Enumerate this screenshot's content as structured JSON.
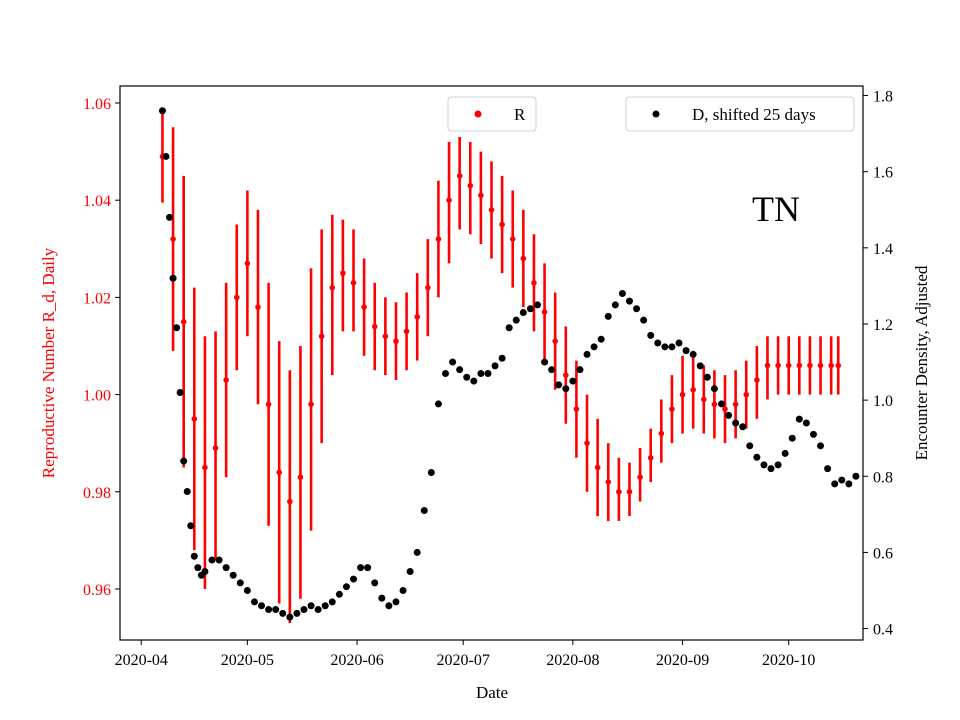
{
  "chart_data": {
    "type": "scatter",
    "annotation": "TN",
    "xlabel": "Date",
    "ylabel_left": "Reproductive Number R_d, Daily",
    "ylabel_right": "Encounter Density, Adjusted",
    "x_ticks": [
      "2020-04",
      "2020-05",
      "2020-06",
      "2020-07",
      "2020-08",
      "2020-09",
      "2020-10"
    ],
    "y_left_ticks": [
      "0.96",
      "0.98",
      "1.00",
      "1.02",
      "1.04",
      "1.06"
    ],
    "y_right_ticks": [
      "0.4",
      "0.6",
      "0.8",
      "1.0",
      "1.2",
      "1.4",
      "1.6",
      "1.8"
    ],
    "ylim_left": [
      0.9495,
      1.0635
    ],
    "ylim_right": [
      0.37,
      1.825
    ],
    "xlim": [
      "2020-03-26",
      "2020-10-22"
    ],
    "legend_left": "top-center",
    "legend_right": "top-right",
    "colors": {
      "R": "#ff0000",
      "D": "#000000"
    },
    "series": [
      {
        "name": "R",
        "marker": "dot",
        "errorbars": true,
        "points": [
          [
            "2020-04-07",
            1.049,
            1.0395,
            1.0585
          ],
          [
            "2020-04-10",
            1.032,
            1.009,
            1.055
          ],
          [
            "2020-04-13",
            1.015,
            0.985,
            1.045
          ],
          [
            "2020-04-16",
            0.995,
            0.968,
            1.022
          ],
          [
            "2020-04-19",
            0.985,
            0.96,
            1.012
          ],
          [
            "2020-04-22",
            0.989,
            0.966,
            1.013
          ],
          [
            "2020-04-25",
            1.003,
            0.983,
            1.023
          ],
          [
            "2020-04-28",
            1.02,
            1.005,
            1.035
          ],
          [
            "2020-05-01",
            1.027,
            1.012,
            1.042
          ],
          [
            "2020-05-04",
            1.018,
            0.998,
            1.038
          ],
          [
            "2020-05-07",
            0.998,
            0.973,
            1.023
          ],
          [
            "2020-05-10",
            0.984,
            0.957,
            1.011
          ],
          [
            "2020-05-13",
            0.978,
            0.953,
            1.005
          ],
          [
            "2020-05-16",
            0.983,
            0.958,
            1.01
          ],
          [
            "2020-05-19",
            0.998,
            0.972,
            1.026
          ],
          [
            "2020-05-22",
            1.012,
            0.99,
            1.034
          ],
          [
            "2020-05-25",
            1.022,
            1.004,
            1.037
          ],
          [
            "2020-05-28",
            1.025,
            1.013,
            1.036
          ],
          [
            "2020-05-31",
            1.023,
            1.013,
            1.034
          ],
          [
            "2020-06-03",
            1.018,
            1.008,
            1.028
          ],
          [
            "2020-06-06",
            1.014,
            1.005,
            1.023
          ],
          [
            "2020-06-09",
            1.012,
            1.004,
            1.02
          ],
          [
            "2020-06-12",
            1.011,
            1.003,
            1.019
          ],
          [
            "2020-06-15",
            1.013,
            1.005,
            1.021
          ],
          [
            "2020-06-18",
            1.016,
            1.007,
            1.025
          ],
          [
            "2020-06-21",
            1.022,
            1.012,
            1.032
          ],
          [
            "2020-06-24",
            1.032,
            1.02,
            1.044
          ],
          [
            "2020-06-27",
            1.04,
            1.027,
            1.052
          ],
          [
            "2020-06-30",
            1.045,
            1.034,
            1.053
          ],
          [
            "2020-07-03",
            1.043,
            1.033,
            1.052
          ],
          [
            "2020-07-06",
            1.041,
            1.031,
            1.05
          ],
          [
            "2020-07-09",
            1.038,
            1.028,
            1.048
          ],
          [
            "2020-07-12",
            1.035,
            1.025,
            1.045
          ],
          [
            "2020-07-15",
            1.032,
            1.022,
            1.042
          ],
          [
            "2020-07-18",
            1.028,
            1.018,
            1.038
          ],
          [
            "2020-07-21",
            1.023,
            1.013,
            1.033
          ],
          [
            "2020-07-24",
            1.017,
            1.007,
            1.027
          ],
          [
            "2020-07-27",
            1.011,
            1.001,
            1.021
          ],
          [
            "2020-07-30",
            1.004,
            0.994,
            1.014
          ],
          [
            "2020-08-02",
            0.997,
            0.987,
            1.007
          ],
          [
            "2020-08-05",
            0.99,
            0.98,
            1.0
          ],
          [
            "2020-08-08",
            0.985,
            0.975,
            0.995
          ],
          [
            "2020-08-11",
            0.982,
            0.974,
            0.99
          ],
          [
            "2020-08-14",
            0.98,
            0.974,
            0.987
          ],
          [
            "2020-08-17",
            0.98,
            0.975,
            0.986
          ],
          [
            "2020-08-20",
            0.983,
            0.978,
            0.989
          ],
          [
            "2020-08-23",
            0.987,
            0.982,
            0.993
          ],
          [
            "2020-08-26",
            0.992,
            0.986,
            0.999
          ],
          [
            "2020-08-29",
            0.997,
            0.99,
            1.004
          ],
          [
            "2020-09-01",
            1.0,
            0.992,
            1.008
          ],
          [
            "2020-09-04",
            1.001,
            0.993,
            1.009
          ],
          [
            "2020-09-07",
            0.999,
            0.992,
            1.006
          ],
          [
            "2020-09-10",
            0.998,
            0.991,
            1.005
          ],
          [
            "2020-09-13",
            0.997,
            0.99,
            1.004
          ],
          [
            "2020-09-16",
            0.998,
            0.991,
            1.005
          ],
          [
            "2020-09-19",
            1.0,
            0.993,
            1.007
          ],
          [
            "2020-09-22",
            1.003,
            0.995,
            1.01
          ],
          [
            "2020-09-25",
            1.006,
            0.999,
            1.012
          ],
          [
            "2020-09-28",
            1.006,
            1.0,
            1.012
          ],
          [
            "2020-10-01",
            1.006,
            1.0,
            1.012
          ],
          [
            "2020-10-04",
            1.006,
            1.0,
            1.012
          ],
          [
            "2020-10-07",
            1.006,
            1.0,
            1.012
          ],
          [
            "2020-10-10",
            1.006,
            1.0,
            1.012
          ],
          [
            "2020-10-13",
            1.006,
            1.0,
            1.012
          ],
          [
            "2020-10-15",
            1.006,
            1.0,
            1.012
          ]
        ]
      },
      {
        "name": "D, shifted 25 days",
        "marker": "dot",
        "points": [
          [
            "2020-04-07",
            1.76
          ],
          [
            "2020-04-08",
            1.64
          ],
          [
            "2020-04-09",
            1.48
          ],
          [
            "2020-04-10",
            1.32
          ],
          [
            "2020-04-11",
            1.19
          ],
          [
            "2020-04-12",
            1.02
          ],
          [
            "2020-04-13",
            0.84
          ],
          [
            "2020-04-14",
            0.76
          ],
          [
            "2020-04-15",
            0.67
          ],
          [
            "2020-04-16",
            0.59
          ],
          [
            "2020-04-17",
            0.56
          ],
          [
            "2020-04-18",
            0.54
          ],
          [
            "2020-04-19",
            0.55
          ],
          [
            "2020-04-21",
            0.58
          ],
          [
            "2020-04-23",
            0.58
          ],
          [
            "2020-04-25",
            0.56
          ],
          [
            "2020-04-27",
            0.54
          ],
          [
            "2020-04-29",
            0.52
          ],
          [
            "2020-05-01",
            0.5
          ],
          [
            "2020-05-03",
            0.47
          ],
          [
            "2020-05-05",
            0.46
          ],
          [
            "2020-05-07",
            0.45
          ],
          [
            "2020-05-09",
            0.45
          ],
          [
            "2020-05-11",
            0.44
          ],
          [
            "2020-05-13",
            0.43
          ],
          [
            "2020-05-15",
            0.44
          ],
          [
            "2020-05-17",
            0.45
          ],
          [
            "2020-05-19",
            0.46
          ],
          [
            "2020-05-21",
            0.45
          ],
          [
            "2020-05-23",
            0.46
          ],
          [
            "2020-05-25",
            0.47
          ],
          [
            "2020-05-27",
            0.49
          ],
          [
            "2020-05-29",
            0.51
          ],
          [
            "2020-05-31",
            0.53
          ],
          [
            "2020-06-02",
            0.56
          ],
          [
            "2020-06-04",
            0.56
          ],
          [
            "2020-06-06",
            0.52
          ],
          [
            "2020-06-08",
            0.48
          ],
          [
            "2020-06-10",
            0.46
          ],
          [
            "2020-06-12",
            0.47
          ],
          [
            "2020-06-14",
            0.5
          ],
          [
            "2020-06-16",
            0.55
          ],
          [
            "2020-06-18",
            0.6
          ],
          [
            "2020-06-20",
            0.71
          ],
          [
            "2020-06-22",
            0.81
          ],
          [
            "2020-06-24",
            0.99
          ],
          [
            "2020-06-26",
            1.07
          ],
          [
            "2020-06-28",
            1.1
          ],
          [
            "2020-06-30",
            1.08
          ],
          [
            "2020-07-02",
            1.06
          ],
          [
            "2020-07-04",
            1.05
          ],
          [
            "2020-07-06",
            1.07
          ],
          [
            "2020-07-08",
            1.07
          ],
          [
            "2020-07-10",
            1.09
          ],
          [
            "2020-07-12",
            1.11
          ],
          [
            "2020-07-14",
            1.19
          ],
          [
            "2020-07-16",
            1.21
          ],
          [
            "2020-07-18",
            1.23
          ],
          [
            "2020-07-20",
            1.24
          ],
          [
            "2020-07-22",
            1.25
          ],
          [
            "2020-07-24",
            1.1
          ],
          [
            "2020-07-26",
            1.08
          ],
          [
            "2020-07-28",
            1.04
          ],
          [
            "2020-07-30",
            1.03
          ],
          [
            "2020-08-01",
            1.05
          ],
          [
            "2020-08-03",
            1.08
          ],
          [
            "2020-08-05",
            1.12
          ],
          [
            "2020-08-07",
            1.14
          ],
          [
            "2020-08-09",
            1.16
          ],
          [
            "2020-08-11",
            1.22
          ],
          [
            "2020-08-13",
            1.25
          ],
          [
            "2020-08-15",
            1.28
          ],
          [
            "2020-08-17",
            1.26
          ],
          [
            "2020-08-19",
            1.24
          ],
          [
            "2020-08-21",
            1.21
          ],
          [
            "2020-08-23",
            1.17
          ],
          [
            "2020-08-25",
            1.15
          ],
          [
            "2020-08-27",
            1.14
          ],
          [
            "2020-08-29",
            1.14
          ],
          [
            "2020-08-31",
            1.15
          ],
          [
            "2020-09-02",
            1.13
          ],
          [
            "2020-09-04",
            1.12
          ],
          [
            "2020-09-06",
            1.09
          ],
          [
            "2020-09-08",
            1.06
          ],
          [
            "2020-09-10",
            1.03
          ],
          [
            "2020-09-12",
            0.99
          ],
          [
            "2020-09-14",
            0.96
          ],
          [
            "2020-09-16",
            0.94
          ],
          [
            "2020-09-18",
            0.93
          ],
          [
            "2020-09-20",
            0.88
          ],
          [
            "2020-09-22",
            0.85
          ],
          [
            "2020-09-24",
            0.83
          ],
          [
            "2020-09-26",
            0.82
          ],
          [
            "2020-09-28",
            0.83
          ],
          [
            "2020-09-30",
            0.86
          ],
          [
            "2020-10-02",
            0.9
          ],
          [
            "2020-10-04",
            0.95
          ],
          [
            "2020-10-06",
            0.94
          ],
          [
            "2020-10-08",
            0.91
          ],
          [
            "2020-10-10",
            0.88
          ],
          [
            "2020-10-12",
            0.82
          ],
          [
            "2020-10-14",
            0.78
          ],
          [
            "2020-10-16",
            0.79
          ],
          [
            "2020-10-18",
            0.78
          ],
          [
            "2020-10-20",
            0.8
          ]
        ]
      }
    ]
  }
}
